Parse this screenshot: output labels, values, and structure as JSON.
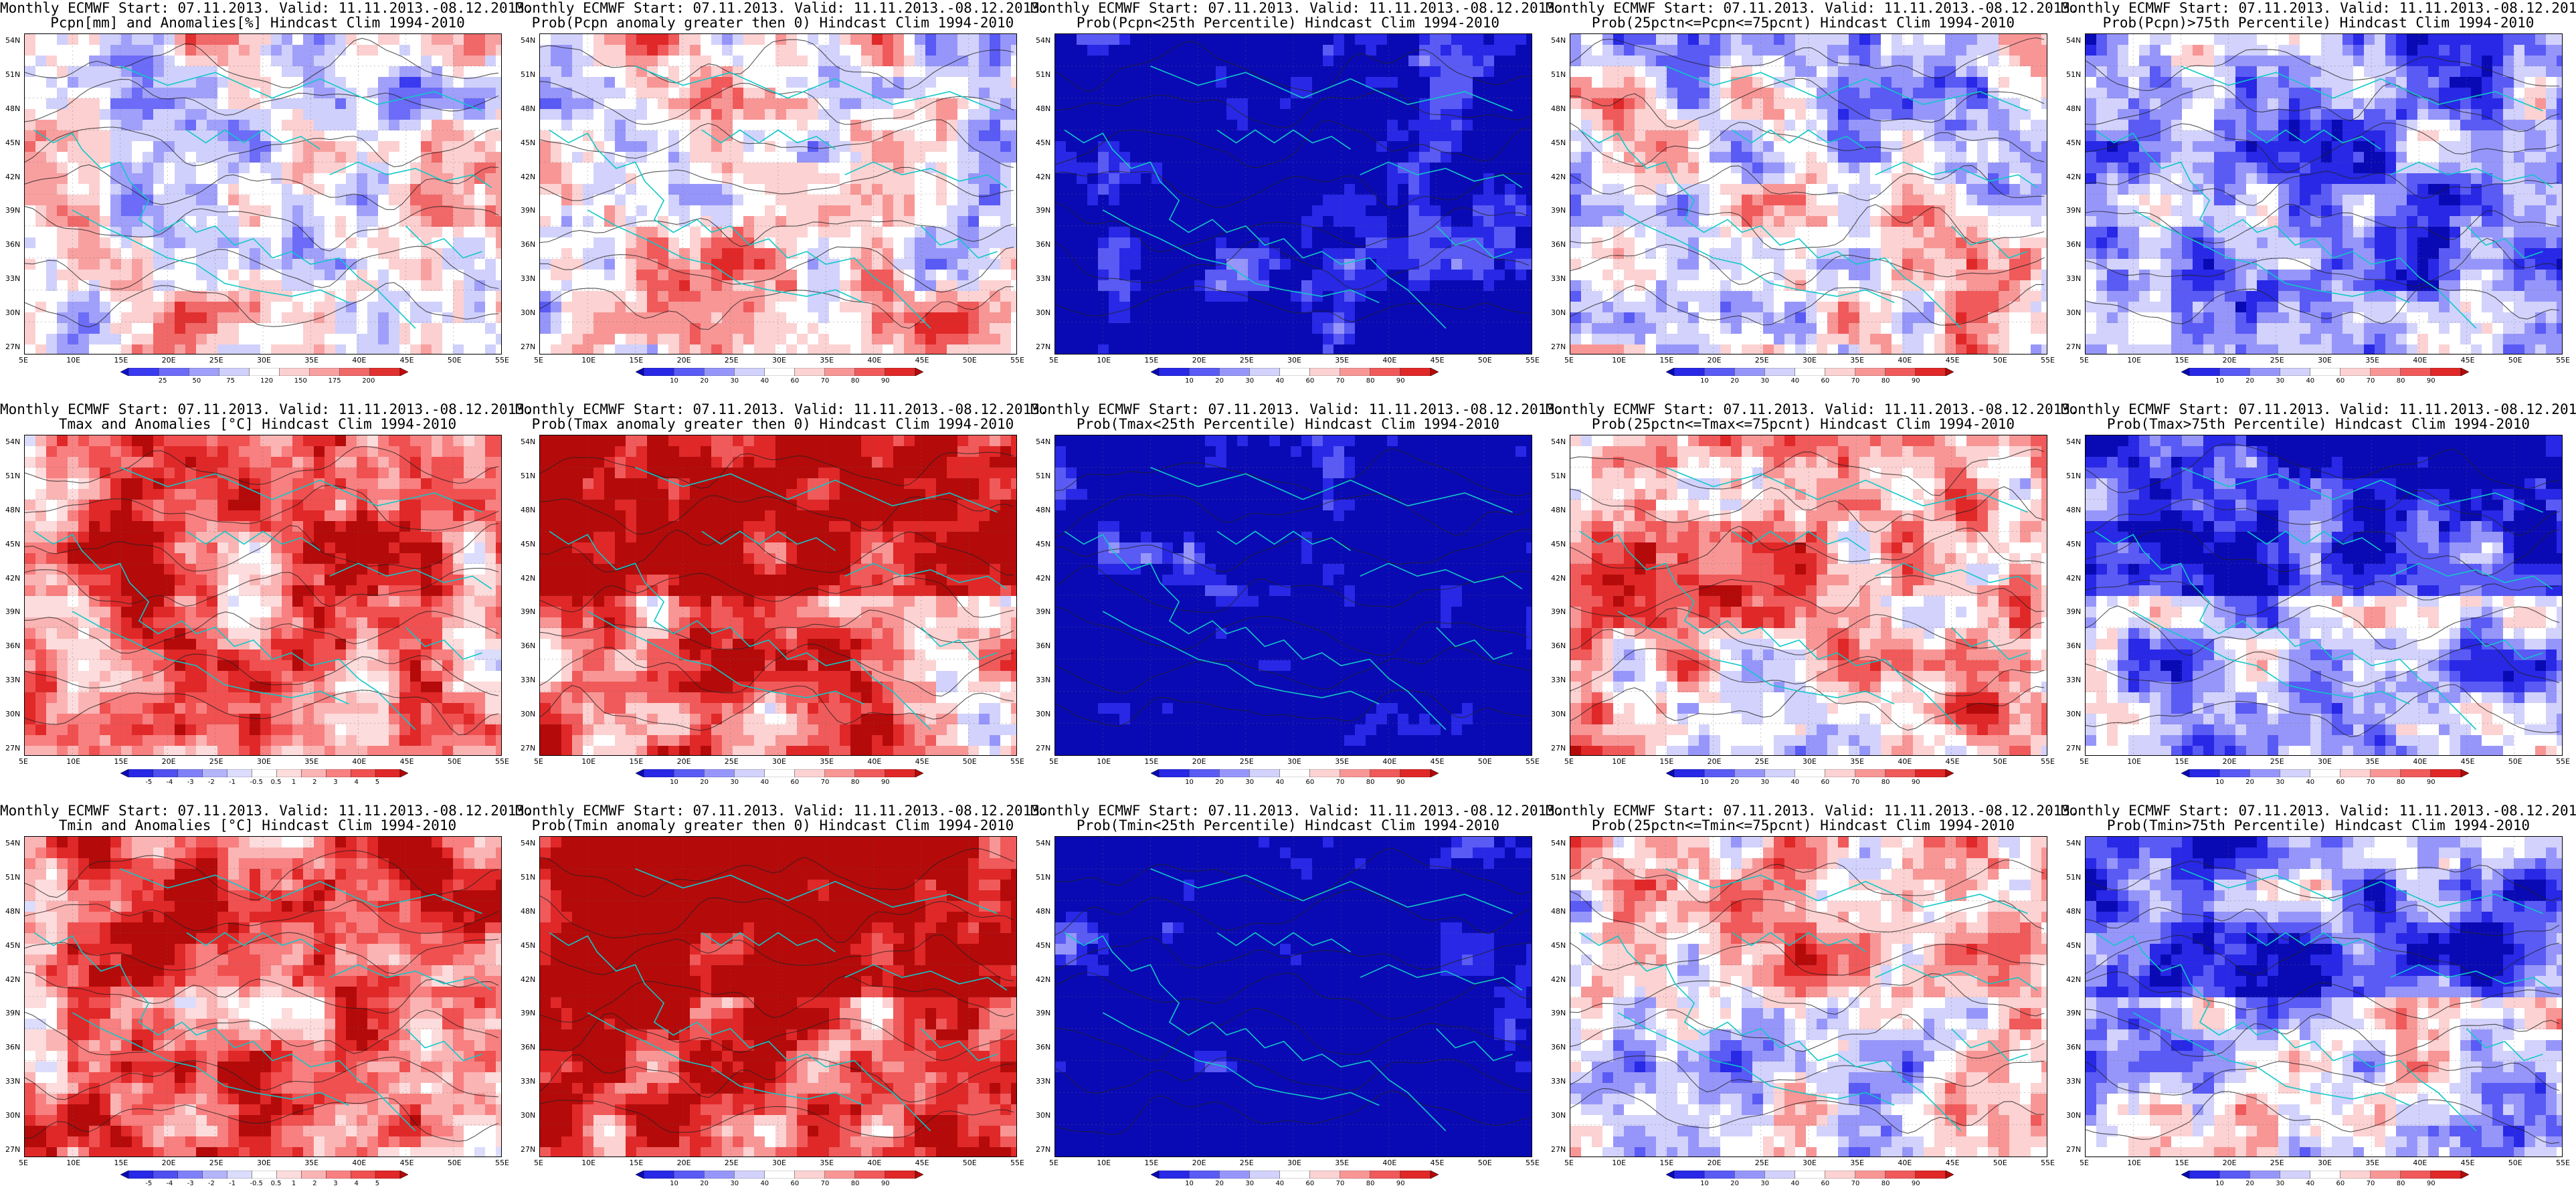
{
  "title_prefix": "Monthly ECMWF Start: 07.11.2013. Valid: 11.11.2013.-08.12.2013.",
  "lat_labels": [
    "54N",
    "51N",
    "48N",
    "45N",
    "42N",
    "39N",
    "36N",
    "33N",
    "30N",
    "27N"
  ],
  "lon_labels": [
    "5E",
    "10E",
    "15E",
    "20E",
    "25E",
    "30E",
    "35E",
    "40E",
    "45E",
    "50E",
    "55E"
  ],
  "colorscales": {
    "precip": {
      "labels": [
        "25",
        "50",
        "75",
        "120",
        "150",
        "175",
        "200"
      ],
      "colors": [
        "#1010c8",
        "#3a3af0",
        "#6c6cf8",
        "#a0a0fa",
        "#d0d0fc",
        "#ffffff",
        "#fcd0d0",
        "#f8a0a0",
        "#f06868",
        "#e03030",
        "#c80808"
      ]
    },
    "prob": {
      "labels": [
        "10",
        "20",
        "30",
        "40",
        "60",
        "70",
        "80",
        "90"
      ],
      "colors": [
        "#0a0ab4",
        "#2828e6",
        "#5a5af5",
        "#9696fa",
        "#d2d2fc",
        "#ffffff",
        "#fcd2d2",
        "#f89696",
        "#f05a5a",
        "#e02828",
        "#b40a0a"
      ]
    },
    "anom": {
      "labels": [
        "-5",
        "-4",
        "-3",
        "-2",
        "-1",
        "-0.5",
        "0.5",
        "1",
        "2",
        "3",
        "4",
        "5"
      ],
      "colors": [
        "#0a0ab4",
        "#2828e6",
        "#5050f0",
        "#8080f8",
        "#b4b4fa",
        "#dcdcfc",
        "#ffffff",
        "#fcdcdc",
        "#fab4b4",
        "#f88080",
        "#f05050",
        "#e02828",
        "#b40a0a"
      ]
    }
  },
  "rows": [
    {
      "panels": [
        {
          "subtitle": "Pcpn[mm] and Anomalies[%] Hindcast Clim 1994-2010",
          "scale": "precip",
          "bias": 0.0
        },
        {
          "subtitle": "Prob(Pcpn anomaly greater then 0) Hindcast Clim 1994-2010",
          "scale": "prob",
          "bias": 0.05
        },
        {
          "subtitle": "Prob(Pcpn<25th Percentile) Hindcast Clim 1994-2010",
          "scale": "prob",
          "bias": -0.55
        },
        {
          "subtitle": "Prob(25pctn<=Pcpn<=75pcnt) Hindcast Clim 1994-2010",
          "scale": "prob",
          "bias": 0.0
        },
        {
          "subtitle": "Prob(Pcpn)>75th Percentile) Hindcast Clim 1994-2010",
          "scale": "prob",
          "bias": -0.2
        }
      ]
    },
    {
      "panels": [
        {
          "subtitle": "Tmax and Anomalies [°C] Hindcast Clim 1994-2010",
          "scale": "anom",
          "bias": 0.25
        },
        {
          "subtitle": "Prob(Tmax anomaly greater then 0) Hindcast Clim 1994-2010",
          "scale": "prob",
          "bias": 0.35
        },
        {
          "subtitle": "Prob(Tmax<25th Percentile) Hindcast Clim 1994-2010",
          "scale": "prob",
          "bias": -0.6
        },
        {
          "subtitle": "Prob(25pctn<=Tmax<=75pcnt) Hindcast Clim 1994-2010",
          "scale": "prob",
          "bias": 0.1
        },
        {
          "subtitle": "Prob(Tmax>75th Percentile) Hindcast Clim 1994-2010",
          "scale": "prob",
          "bias": -0.25
        }
      ]
    },
    {
      "panels": [
        {
          "subtitle": "Tmin and Anomalies [°C] Hindcast Clim 1994-2010",
          "scale": "anom",
          "bias": 0.3
        },
        {
          "subtitle": "Prob(Tmin anomaly greater then 0) Hindcast Clim 1994-2010",
          "scale": "prob",
          "bias": 0.45
        },
        {
          "subtitle": "Prob(Tmin<25th Percentile) Hindcast Clim 1994-2010",
          "scale": "prob",
          "bias": -0.6
        },
        {
          "subtitle": "Prob(25pctn<=Tmin<=75pcnt) Hindcast Clim 1994-2010",
          "scale": "prob",
          "bias": 0.05
        },
        {
          "subtitle": "Prob(Tmin>75th Percentile) Hindcast Clim 1994-2010",
          "scale": "prob",
          "bias": -0.15
        }
      ]
    }
  ]
}
